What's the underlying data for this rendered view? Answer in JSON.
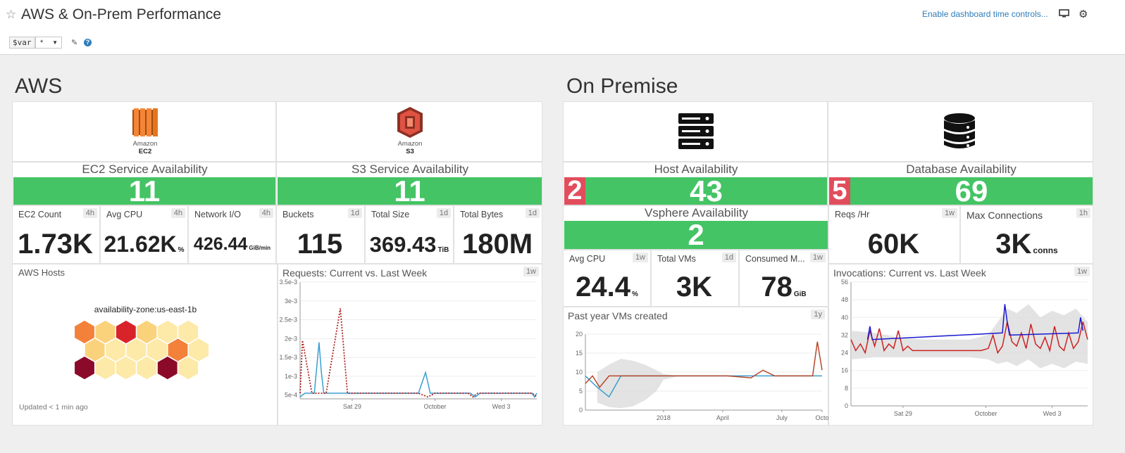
{
  "header": {
    "title": "AWS & On-Prem Performance",
    "time_controls_link": "Enable dashboard time controls...",
    "var_name": "$var",
    "var_value": "*"
  },
  "aws": {
    "section_title": "AWS",
    "ec2_logo": {
      "line1": "Amazon",
      "line2": "EC2",
      "color": "#e6761c"
    },
    "s3_logo": {
      "line1": "Amazon",
      "line2": "S3",
      "color": "#d24e2b"
    },
    "ec2_availability": {
      "title": "EC2 Service Availability",
      "value": "11"
    },
    "s3_availability": {
      "title": "S3 Service Availability",
      "value": "11"
    },
    "metrics": [
      {
        "title": "EC2 Count",
        "badge": "4h",
        "value": "1.73K",
        "unit": ""
      },
      {
        "title": "Avg CPU",
        "badge": "4h",
        "value": "21.62K",
        "unit": "%"
      },
      {
        "title": "Network I/O",
        "badge": "4h",
        "value": "426.44",
        "unit": "GiB/min"
      },
      {
        "title": "Buckets",
        "badge": "1d",
        "value": "115",
        "unit": ""
      },
      {
        "title": "Total Size",
        "badge": "1d",
        "value": "369.43",
        "unit": "TiB"
      },
      {
        "title": "Total Bytes",
        "badge": "1d",
        "value": "180M",
        "unit": ""
      }
    ],
    "hosts": {
      "title": "AWS Hosts",
      "group_label": "availability-zone:us-east-1b",
      "updated": "Updated < 1 min ago"
    }
  },
  "onprem": {
    "section_title": "On Premise",
    "host_availability": {
      "title": "Host Availability",
      "down": "2",
      "up": "43"
    },
    "database_availability": {
      "title": "Database Availability",
      "down": "5",
      "up": "69"
    },
    "vsphere_availability": {
      "title": "Vsphere Availability",
      "value": "2"
    },
    "metrics": [
      {
        "title": "Avg CPU",
        "badge": "1w",
        "value": "24.4",
        "unit": "%"
      },
      {
        "title": "Total VMs",
        "badge": "1d",
        "value": "3K",
        "unit": ""
      },
      {
        "title": "Consumed M...",
        "badge": "1w",
        "value": "78",
        "unit": "GiB"
      }
    ],
    "db_metrics": [
      {
        "title": "Reqs /Hr",
        "badge": "1w",
        "value": "60K",
        "unit": ""
      },
      {
        "title": "Max Connections",
        "badge": "1h",
        "value": "3K",
        "unit": "conns"
      }
    ]
  },
  "colors": {
    "green": "#44c464",
    "red": "#e24d5d",
    "link": "#2e7cba"
  },
  "chart_data": [
    {
      "type": "line",
      "title": "Requests: Current vs. Last Week",
      "badge": "1w",
      "yticks": [
        "3.5e-3",
        "3e-3",
        "2.5e-3",
        "2e-3",
        "1.5e-3",
        "1e-3",
        "5e-4"
      ],
      "ylim": [
        0.0004,
        0.0035
      ],
      "xticks": [
        "Sat 29",
        "October",
        "Wed 3"
      ],
      "series": [
        {
          "name": "",
          "style": "solid",
          "color": "#3a9fd0",
          "x": [
            0,
            0.02,
            0.04,
            0.06,
            0.08,
            0.09,
            0.1,
            0.11,
            0.14,
            0.5,
            0.53,
            0.55,
            0.6,
            0.72,
            0.74,
            0.76,
            0.8,
            0.98,
            0.99,
            1.0
          ],
          "y": [
            0.00045,
            0.00055,
            0.00055,
            0.00055,
            0.0019,
            0.0011,
            0.00055,
            0.00055,
            0.00055,
            0.00055,
            0.0011,
            0.00055,
            0.00055,
            0.00055,
            0.00045,
            0.00055,
            0.00055,
            0.00055,
            0.00045,
            0.00055
          ]
        },
        {
          "name": "",
          "style": "dotted",
          "color": "#b22222",
          "x": [
            0,
            0.01,
            0.05,
            0.09,
            0.11,
            0.17,
            0.2,
            0.23,
            0.3,
            0.5,
            0.54,
            0.57,
            0.6,
            0.71,
            0.73,
            0.75,
            0.9,
            0.98,
            1.0
          ],
          "y": [
            0.00055,
            0.00195,
            0.00055,
            0.00055,
            0.00055,
            0.0028,
            0.00055,
            0.00055,
            0.00055,
            0.00055,
            0.00045,
            0.00055,
            0.00055,
            0.00055,
            0.00045,
            0.00055,
            0.00055,
            0.00055,
            0.00045
          ]
        }
      ]
    },
    {
      "type": "line",
      "title": "Past year VMs created",
      "badge": "1y",
      "yticks": [
        "20",
        "15",
        "10",
        "5",
        "0"
      ],
      "ylim": [
        0,
        20
      ],
      "xticks": [
        "2018",
        "April",
        "July",
        "Octo"
      ],
      "series": [
        {
          "name": "",
          "color": "#3a9fd0",
          "x": [
            0,
            0.05,
            0.1,
            0.15,
            0.2,
            0.3,
            0.4,
            0.5,
            0.6,
            0.7,
            0.8,
            0.9,
            0.95,
            0.98,
            1.0
          ],
          "y": [
            9,
            6,
            3.5,
            9,
            9,
            9,
            9,
            9,
            9,
            9,
            9,
            9,
            9,
            9,
            9
          ]
        },
        {
          "name": "",
          "color": "#b7472a",
          "x": [
            0,
            0.03,
            0.06,
            0.1,
            0.2,
            0.6,
            0.7,
            0.75,
            0.8,
            0.92,
            0.96,
            0.98,
            1.0
          ],
          "y": [
            7,
            9,
            6,
            9,
            9,
            9,
            8.5,
            10.5,
            9,
            9,
            9,
            18,
            10.5
          ]
        }
      ]
    },
    {
      "type": "line",
      "title": "Invocations: Current vs. Last Week",
      "badge": "1w",
      "yticks": [
        "56",
        "48",
        "40",
        "32",
        "24",
        "16",
        "8",
        "0"
      ],
      "ylim": [
        0,
        56
      ],
      "xticks": [
        "Sat 29",
        "October",
        "Wed 3"
      ],
      "series": [
        {
          "name": "",
          "color": "#cc2222",
          "x": [
            0,
            0.02,
            0.04,
            0.06,
            0.08,
            0.1,
            0.12,
            0.14,
            0.16,
            0.18,
            0.2,
            0.22,
            0.24,
            0.26,
            0.3,
            0.35,
            0.4,
            0.45,
            0.5,
            0.55,
            0.58,
            0.6,
            0.62,
            0.64,
            0.66,
            0.68,
            0.7,
            0.72,
            0.74,
            0.76,
            0.78,
            0.8,
            0.82,
            0.84,
            0.86,
            0.88,
            0.9,
            0.92,
            0.94,
            0.96,
            0.98,
            1.0
          ],
          "y": [
            30,
            25,
            28,
            24,
            34,
            27,
            35,
            25,
            28,
            26,
            34,
            25,
            27,
            25,
            25,
            25,
            25,
            25,
            25,
            25,
            26,
            32,
            24,
            27,
            38,
            29,
            27,
            33,
            26,
            37,
            28,
            26,
            31,
            25,
            36,
            27,
            25,
            33,
            26,
            29,
            38,
            30
          ]
        },
        {
          "name": "",
          "color": "#1a1ad0",
          "x": [
            0.07,
            0.08,
            0.09,
            0.64,
            0.65,
            0.66,
            0.67,
            0.96,
            0.97,
            0.98
          ],
          "y": [
            30,
            36,
            30,
            33,
            46,
            38,
            32,
            33,
            40,
            34
          ]
        }
      ]
    }
  ]
}
